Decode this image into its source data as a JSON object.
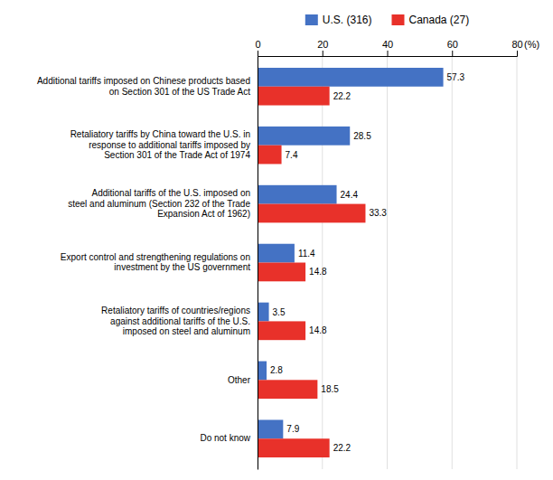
{
  "chart_data": {
    "type": "bar",
    "orientation": "horizontal",
    "categories": [
      "Additional tariffs imposed on Chinese products based\non Section 301 of the US Trade Act",
      "Retaliatory tariffs by China toward the U.S. in\nresponse to additional tariffs imposed by\nSection 301 of the Trade Act of 1974",
      "Additional tariffs of the U.S. imposed on\nsteel and aluminum (Section 232 of the Trade\nExpansion Act of 1962)",
      "Export control and strengthening regulations on\ninvestment by the US government",
      "Retaliatory tariffs of countries/regions\nagainst additional tariffs of the U.S.\nimposed on steel and aluminum",
      "Other",
      "Do not know"
    ],
    "series": [
      {
        "name": "U.S. (316)",
        "color": "#4472C4",
        "values": [
          57.3,
          28.5,
          24.4,
          11.4,
          3.5,
          2.8,
          7.9
        ]
      },
      {
        "name": "Canada (27)",
        "color": "#E8312A",
        "values": [
          22.2,
          7.4,
          33.3,
          14.8,
          14.8,
          18.5,
          22.2
        ]
      }
    ],
    "xlabel": "(%)",
    "xlim": [
      0,
      80
    ],
    "xticks": [
      0,
      20,
      40,
      60,
      80
    ],
    "grid": true,
    "legend": "top",
    "data_labels": true
  }
}
